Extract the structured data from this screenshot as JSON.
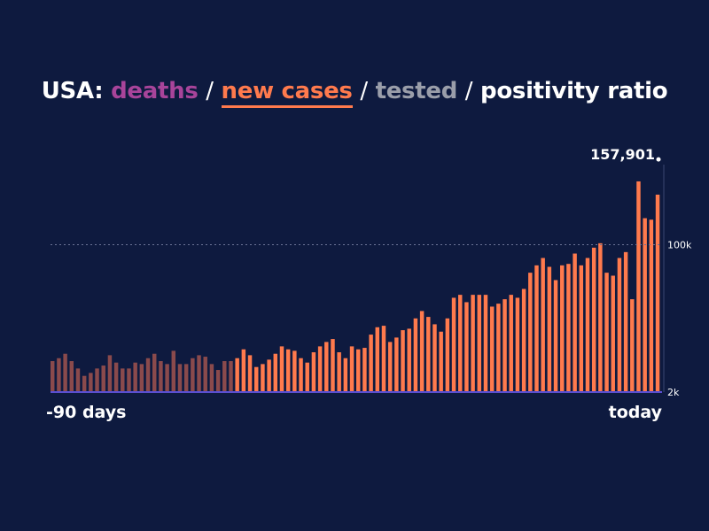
{
  "title": {
    "country": "USA:",
    "sep": "/",
    "metrics": [
      "deaths",
      "new cases",
      "tested",
      "positivity ratio"
    ],
    "active_metric": "new cases"
  },
  "colors": {
    "background": "#0e1a3f",
    "deaths": "#a8449a",
    "new_cases": "#ff7a4d",
    "new_cases_faded": "#8a4a4c",
    "tested": "#9a9eaa",
    "text": "#ffffff",
    "baseline": "#5a4fd0"
  },
  "chart_data": {
    "type": "bar",
    "series": [
      {
        "name": "new cases",
        "values": [
          21000,
          23000,
          26000,
          21000,
          16000,
          11000,
          13000,
          16000,
          18000,
          25000,
          20000,
          16000,
          16000,
          20000,
          19000,
          23000,
          26000,
          21000,
          19000,
          28000,
          19000,
          19000,
          23000,
          25000,
          24000,
          19000,
          15000,
          21000,
          21000,
          23000,
          29000,
          25000,
          17000,
          19000,
          22000,
          26000,
          31000,
          29000,
          28000,
          23000,
          20000,
          27000,
          31000,
          34000,
          36000,
          27000,
          23000,
          31000,
          29000,
          30000,
          39000,
          44000,
          45000,
          34000,
          37000,
          42000,
          43000,
          50000,
          55000,
          51000,
          46000,
          41000,
          50000,
          64000,
          66000,
          61000,
          66000,
          66000,
          66000,
          58000,
          60000,
          63000,
          66000,
          64000,
          70000,
          81000,
          86000,
          91000,
          85000,
          76000,
          86000,
          87000,
          94000,
          86000,
          91000,
          98000,
          101000,
          81000,
          79000,
          91000,
          95000,
          63000,
          143000,
          118000,
          117000,
          134000
        ],
        "highlight_from_index": 29
      }
    ],
    "x_start_label": "-90 days",
    "x_end_label": "today",
    "y_ticks": [
      {
        "value": 100000,
        "label": "100k"
      },
      {
        "value": 2000,
        "label": "2k"
      }
    ],
    "callout": {
      "label": "157,901",
      "value": 157901
    },
    "ylim": [
      0,
      170000
    ],
    "grid": false
  }
}
